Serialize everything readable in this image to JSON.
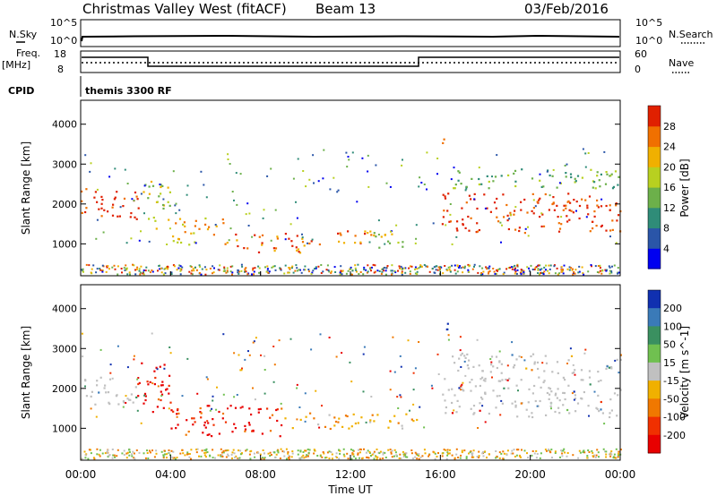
{
  "header": {
    "station": "Christmas Valley West (fitACF)",
    "beam": "Beam 13",
    "date": "03/Feb/2016"
  },
  "summary": {
    "nsky_label": "N.Sky",
    "nsky_ticks": [
      "10^5",
      "10^0"
    ],
    "nsearch_label": "N.Search",
    "nsearch_ticks": [
      "10^5",
      "10^0"
    ],
    "freq_label_1": "Freq.",
    "freq_label_2": "[MHz]",
    "freq_ticks": [
      "18",
      "8"
    ],
    "nave_label": "Nave",
    "nave_ticks": [
      "60",
      "0"
    ],
    "cpid_label": "CPID",
    "cpid_value": "themis 3300 RF"
  },
  "chart_data": [
    {
      "type": "heatmap",
      "panel": "power",
      "ylabel": "Slant Range [km]",
      "yticks": [
        "1000",
        "2000",
        "3000",
        "4000"
      ],
      "ylim": [
        200,
        4600
      ],
      "xlim": [
        0,
        24
      ],
      "colorbar": {
        "label": "Power [dB]",
        "ticks": [
          "4",
          "8",
          "12",
          "16",
          "20",
          "24",
          "28"
        ],
        "colors": [
          "#0000f0",
          "#2a55a8",
          "#2f8c78",
          "#6cb04a",
          "#b8d020",
          "#f0b000",
          "#f07000",
          "#e02000"
        ]
      },
      "regions": [
        {
          "x": [
            0.0,
            2.7
          ],
          "y": [
            1600,
            2400
          ],
          "level": 7
        },
        {
          "x": [
            2.7,
            4.0
          ],
          "y": [
            1400,
            2600
          ],
          "level": 4
        },
        {
          "x": [
            4.0,
            6.5
          ],
          "y": [
            1000,
            1700
          ],
          "level": 5
        },
        {
          "x": [
            6.5,
            10.0
          ],
          "y": [
            800,
            1300
          ],
          "level": 6
        },
        {
          "x": [
            10.0,
            13.0
          ],
          "y": [
            1000,
            1350
          ],
          "level": 6
        },
        {
          "x": [
            13.0,
            15.0
          ],
          "y": [
            900,
            1300
          ],
          "level": 4
        },
        {
          "x": [
            15.8,
            16.2
          ],
          "y": [
            3400,
            3700
          ],
          "level": 5
        },
        {
          "x": [
            16.0,
            24.0
          ],
          "y": [
            1300,
            2300
          ],
          "level": 7
        },
        {
          "x": [
            16.5,
            24.0
          ],
          "y": [
            2400,
            2900
          ],
          "level": 3
        }
      ]
    },
    {
      "type": "heatmap",
      "panel": "velocity",
      "xlabel": "Time UT",
      "xticks": [
        "00:00",
        "04:00",
        "08:00",
        "12:00",
        "16:00",
        "20:00",
        "00:00"
      ],
      "ylabel": "Slant Range [km]",
      "yticks": [
        "1000",
        "2000",
        "3000",
        "4000"
      ],
      "ylim": [
        200,
        4600
      ],
      "xlim": [
        0,
        24
      ],
      "colorbar": {
        "label": "Velocity [m s^-1]",
        "ticks": [
          "200",
          "100",
          "50",
          "15",
          "-15",
          "-50",
          "-100",
          "-200"
        ],
        "colors": [
          "#1030b0",
          "#3a7ab8",
          "#3a9060",
          "#70c050",
          "#c0c0c0",
          "#f0b000",
          "#f07800",
          "#f03000",
          "#e80000"
        ]
      },
      "regions": [
        {
          "x": [
            0.0,
            2.5
          ],
          "y": [
            1600,
            2300
          ],
          "kind": "ground"
        },
        {
          "x": [
            2.5,
            4.0
          ],
          "y": [
            1400,
            2700
          ],
          "kind": "neg-fast"
        },
        {
          "x": [
            4.0,
            9.0
          ],
          "y": [
            800,
            1600
          ],
          "kind": "neg-fast"
        },
        {
          "x": [
            9.0,
            15.0
          ],
          "y": [
            1000,
            1400
          ],
          "kind": "neg-mid"
        },
        {
          "x": [
            15.8,
            16.3
          ],
          "y": [
            3400,
            3800
          ],
          "kind": "pos-fast"
        },
        {
          "x": [
            16.0,
            24.0
          ],
          "y": [
            1300,
            2300
          ],
          "kind": "ground"
        },
        {
          "x": [
            16.5,
            24.0
          ],
          "y": [
            2400,
            2900
          ],
          "kind": "ground"
        }
      ]
    }
  ]
}
